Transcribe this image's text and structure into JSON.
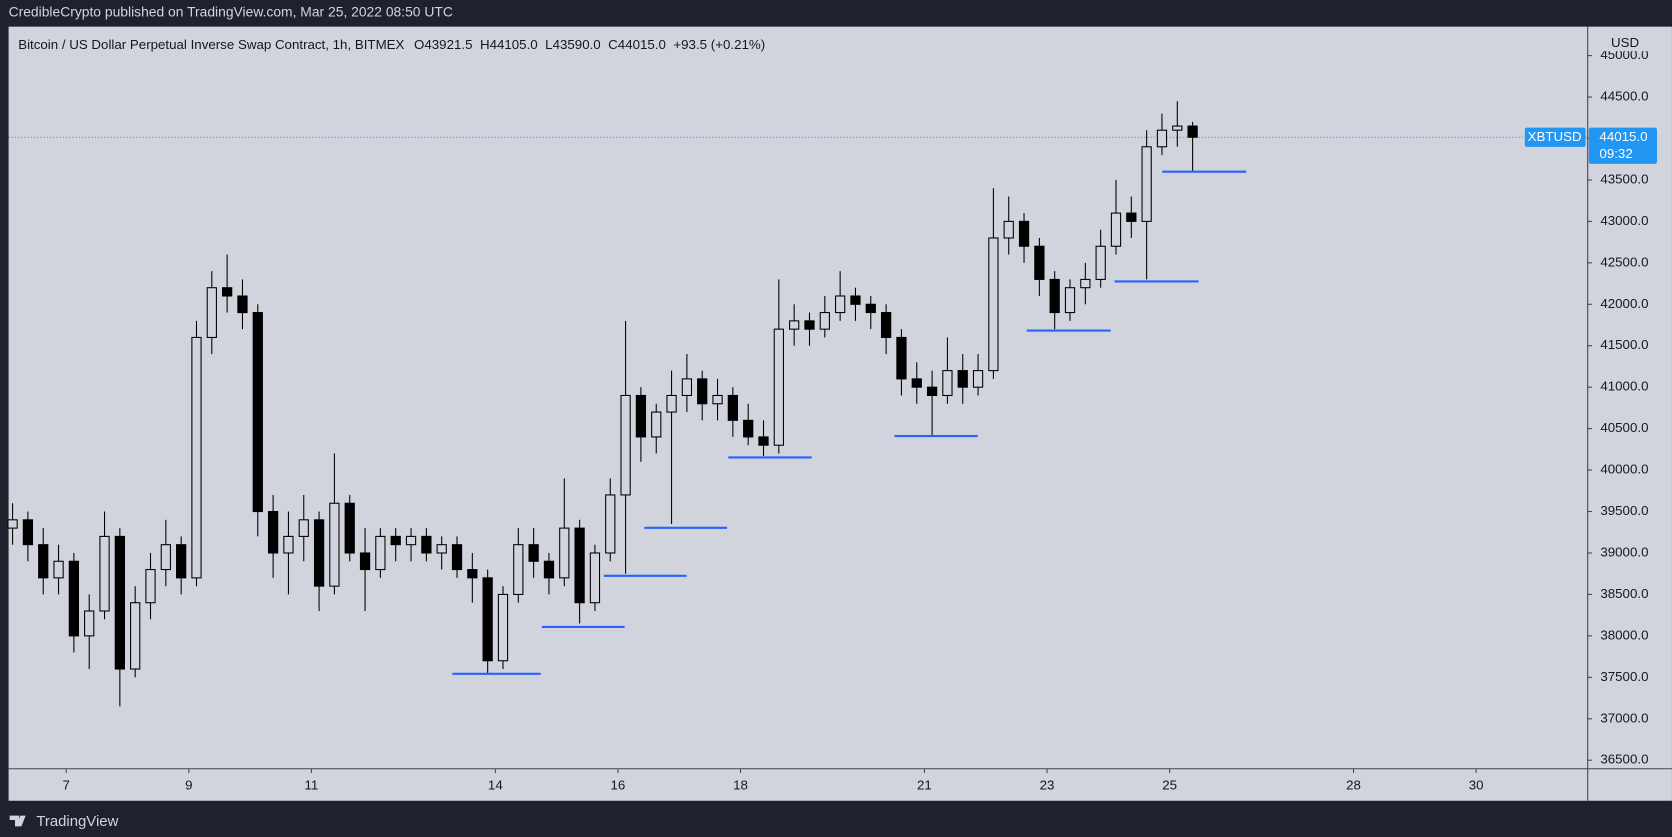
{
  "header": {
    "publisher": "CredibleCrypto published on TradingView.com, Mar 25, 2022 08:50 UTC",
    "brand": "TradingView"
  },
  "chart_data": {
    "type": "candlestick",
    "title": "Bitcoin / US Dollar Perpetual Inverse Swap Contract, 1h, BITMEX",
    "ohlc_legend": [
      "O43921.5",
      "H44105.0",
      "L43590.0",
      "C44015.0",
      "+93.5 (+0.21%)"
    ],
    "currency": "USD",
    "symbol": "XBTUSD",
    "last_price": {
      "value": 44015,
      "label": "44015.0"
    },
    "countdown": "09:32",
    "color": "#000000",
    "x": [
      6.125,
      6.375,
      6.625,
      6.875,
      7.125,
      7.375,
      7.625,
      7.875,
      8.125,
      8.375,
      8.625,
      8.875,
      9.125,
      9.375,
      9.625,
      9.875,
      10.125,
      10.375,
      10.625,
      10.875,
      11.125,
      11.375,
      11.625,
      11.875,
      12.125,
      12.375,
      12.625,
      12.875,
      13.125,
      13.375,
      13.625,
      13.875,
      14.125,
      14.375,
      14.625,
      14.875,
      15.125,
      15.375,
      15.625,
      15.875,
      16.125,
      16.375,
      16.625,
      16.875,
      17.125,
      17.375,
      17.625,
      17.875,
      18.125,
      18.375,
      18.625,
      18.875,
      19.125,
      19.375,
      19.625,
      19.875,
      20.125,
      20.375,
      20.625,
      20.875,
      21.125,
      21.375,
      21.625,
      21.875,
      22.125,
      22.375,
      22.625,
      22.875,
      23.125,
      23.375,
      23.625,
      23.875,
      24.125,
      24.375,
      24.625,
      24.875,
      25.125,
      25.375
    ],
    "open": [
      39300,
      39400,
      39100,
      38700,
      38900,
      38000,
      38300,
      39200,
      37600,
      38400,
      38800,
      39100,
      38700,
      41600,
      42200,
      42100,
      41900,
      39500,
      39000,
      39200,
      39400,
      38600,
      39600,
      39000,
      38800,
      39200,
      39100,
      39200,
      39000,
      39100,
      38800,
      38700,
      37700,
      38500,
      39100,
      38900,
      38700,
      39300,
      38400,
      39000,
      39700,
      40900,
      40400,
      40700,
      40900,
      41100,
      40800,
      40900,
      40600,
      40400,
      40300,
      41700,
      41800,
      41700,
      41900,
      42100,
      42000,
      41900,
      41600,
      41100,
      41000,
      40900,
      41200,
      41000,
      41200,
      42800,
      43000,
      42700,
      42300,
      41900,
      42200,
      42300,
      42700,
      43100,
      43000,
      43900,
      44100,
      44150
    ],
    "high": [
      39600,
      39500,
      39300,
      39100,
      39000,
      38500,
      39500,
      39300,
      38600,
      39000,
      39400,
      39200,
      41800,
      42400,
      42600,
      42300,
      42000,
      39700,
      39500,
      39700,
      39500,
      40200,
      39700,
      39300,
      39300,
      39300,
      39300,
      39300,
      39200,
      39200,
      39000,
      38800,
      38600,
      39300,
      39300,
      39000,
      39900,
      39400,
      39100,
      39900,
      41800,
      41000,
      40800,
      41200,
      41400,
      41200,
      41100,
      41000,
      40800,
      40600,
      42300,
      42000,
      41900,
      42100,
      42400,
      42200,
      42100,
      42000,
      41700,
      41300,
      41200,
      41600,
      41400,
      41400,
      43400,
      43300,
      43100,
      42800,
      42400,
      42300,
      42500,
      42900,
      43500,
      43300,
      44100,
      44300,
      44450,
      44200
    ],
    "low": [
      39100,
      38900,
      38500,
      38500,
      37800,
      37600,
      38200,
      37150,
      37500,
      38200,
      38600,
      38500,
      38600,
      41400,
      41900,
      41700,
      39200,
      38700,
      38500,
      38900,
      38300,
      38500,
      38900,
      38300,
      38700,
      38900,
      38900,
      38900,
      38800,
      38700,
      38400,
      37550,
      37600,
      38400,
      38700,
      38500,
      38600,
      38150,
      38300,
      38900,
      38750,
      40100,
      40200,
      39350,
      40700,
      40600,
      40600,
      40400,
      40300,
      40170,
      40200,
      41500,
      41500,
      41600,
      41800,
      41800,
      41700,
      41400,
      40900,
      40800,
      40420,
      40800,
      40800,
      40900,
      41100,
      42600,
      42500,
      42100,
      41700,
      41800,
      42000,
      42200,
      42600,
      42800,
      42300,
      43800,
      43900,
      43590
    ],
    "close": [
      39400,
      39100,
      38700,
      38900,
      38000,
      38300,
      39200,
      37600,
      38400,
      38800,
      39100,
      38700,
      41600,
      42200,
      42100,
      41900,
      39500,
      39000,
      39200,
      39400,
      38600,
      39600,
      39000,
      38800,
      39200,
      39100,
      39200,
      39000,
      39100,
      38800,
      38700,
      37700,
      38500,
      39100,
      38900,
      38700,
      39300,
      38400,
      39000,
      39700,
      40900,
      40400,
      40700,
      40900,
      41100,
      40800,
      40900,
      40600,
      40400,
      40300,
      41700,
      41800,
      41700,
      41900,
      42100,
      42000,
      41900,
      41600,
      41100,
      41000,
      40900,
      41200,
      41000,
      41200,
      42800,
      43000,
      42700,
      42300,
      41900,
      42200,
      42300,
      42700,
      43100,
      43000,
      43900,
      44100,
      44150,
      44015
    ],
    "xlim": [
      6.06,
      31.82
    ],
    "xticks": [
      7,
      9,
      11,
      14,
      16,
      18,
      21,
      23,
      25,
      28,
      30
    ],
    "ylim": [
      36397,
      45349
    ],
    "yticks": [
      {
        "value": 36500,
        "label": "36500.0"
      },
      {
        "value": 37000,
        "label": "37000.0"
      },
      {
        "value": 37500,
        "label": "37500.0"
      },
      {
        "value": 38000,
        "label": "38000.0"
      },
      {
        "value": 38500,
        "label": "38500.0"
      },
      {
        "value": 39000,
        "label": "39000.0"
      },
      {
        "value": 39500,
        "label": "39500.0"
      },
      {
        "value": 40000,
        "label": "40000.0"
      },
      {
        "value": 40500,
        "label": "40500.0"
      },
      {
        "value": 41000,
        "label": "41000.0"
      },
      {
        "value": 41500,
        "label": "41500.0"
      },
      {
        "value": 42000,
        "label": "42000.0"
      },
      {
        "value": 42500,
        "label": "42500.0"
      },
      {
        "value": 43000,
        "label": "43000.0"
      },
      {
        "value": 43500,
        "label": "43500.0"
      },
      {
        "value": 44000,
        "label": "44000.0"
      },
      {
        "value": 44500,
        "label": "44500.0"
      },
      {
        "value": 45000,
        "label": "45000.0"
      }
    ],
    "grid": false,
    "support_color": "#2962ff",
    "support_lines": [
      {
        "x": [
          13.3,
          14.74
        ],
        "price": 37542
      },
      {
        "x": [
          14.76,
          16.11
        ],
        "price": 38108
      },
      {
        "x": [
          15.77,
          17.12
        ],
        "price": 38725
      },
      {
        "x": [
          16.43,
          17.78
        ],
        "price": 39304
      },
      {
        "x": [
          17.8,
          19.16
        ],
        "price": 40153
      },
      {
        "x": [
          20.51,
          21.87
        ],
        "price": 40410
      },
      {
        "x": [
          22.67,
          24.04
        ],
        "price": 41683
      },
      {
        "x": [
          24.1,
          25.47
        ],
        "price": 42275
      },
      {
        "x": [
          24.88,
          26.25
        ],
        "price": 43600
      }
    ]
  }
}
